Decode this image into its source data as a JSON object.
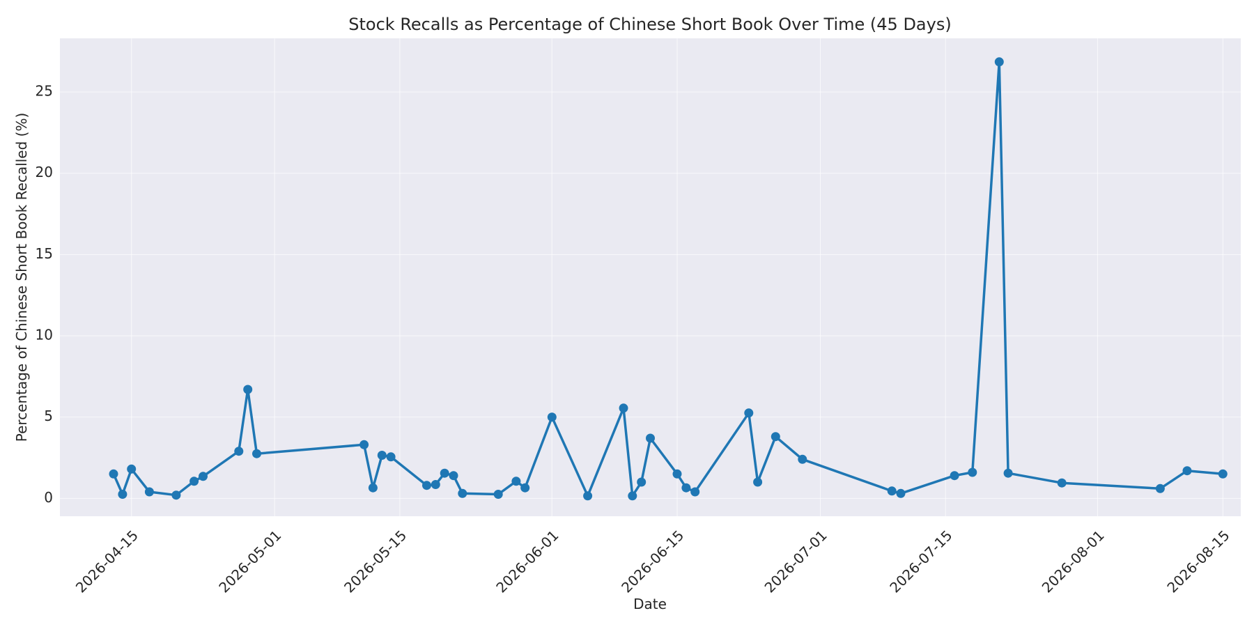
{
  "chart_data": {
    "type": "line",
    "title": "Stock Recalls as Percentage of Chinese Short Book Over Time (45 Days)",
    "xlabel": "Date",
    "ylabel": "Percentage of Chinese Short Book Recalled (%)",
    "xlim": [
      "2026-04-07",
      "2026-08-17"
    ],
    "ylim": [
      -1.1,
      28.3
    ],
    "x_ticks": [
      "2026-04-15",
      "2026-05-01",
      "2026-05-15",
      "2026-06-01",
      "2026-06-15",
      "2026-07-01",
      "2026-07-15",
      "2026-08-01",
      "2026-08-15"
    ],
    "y_ticks": [
      0,
      5,
      10,
      15,
      20,
      25
    ],
    "grid": true,
    "colors": {
      "background": "#eaeaf2",
      "line": "#1f77b4",
      "grid": "#ffffff"
    },
    "series": [
      {
        "x": [
          "2026-04-13",
          "2026-04-14",
          "2026-04-15",
          "2026-04-17",
          "2026-04-20",
          "2026-04-22",
          "2026-04-23",
          "2026-04-27",
          "2026-04-28",
          "2026-04-29",
          "2026-05-11",
          "2026-05-12",
          "2026-05-13",
          "2026-05-14",
          "2026-05-18",
          "2026-05-19",
          "2026-05-20",
          "2026-05-21",
          "2026-05-22",
          "2026-05-26",
          "2026-05-28",
          "2026-05-29",
          "2026-06-01",
          "2026-06-05",
          "2026-06-09",
          "2026-06-10",
          "2026-06-11",
          "2026-06-12",
          "2026-06-15",
          "2026-06-16",
          "2026-06-17",
          "2026-06-23",
          "2026-06-24",
          "2026-06-26",
          "2026-06-29",
          "2026-07-09",
          "2026-07-10",
          "2026-07-16",
          "2026-07-18",
          "2026-07-21",
          "2026-07-22",
          "2026-07-28",
          "2026-08-08",
          "2026-08-11",
          "2026-08-15"
        ],
        "values": [
          1.5,
          0.25,
          1.8,
          0.4,
          0.2,
          1.05,
          1.35,
          2.9,
          6.7,
          2.75,
          3.3,
          0.65,
          2.65,
          2.55,
          0.8,
          0.85,
          1.55,
          1.4,
          0.3,
          0.25,
          1.05,
          0.65,
          5.0,
          0.15,
          5.55,
          0.15,
          1.0,
          3.7,
          1.5,
          0.65,
          0.4,
          5.25,
          1.0,
          3.8,
          2.4,
          0.45,
          0.3,
          1.4,
          1.6,
          26.85,
          1.55,
          0.95,
          0.6,
          1.7,
          1.5
        ]
      }
    ]
  }
}
